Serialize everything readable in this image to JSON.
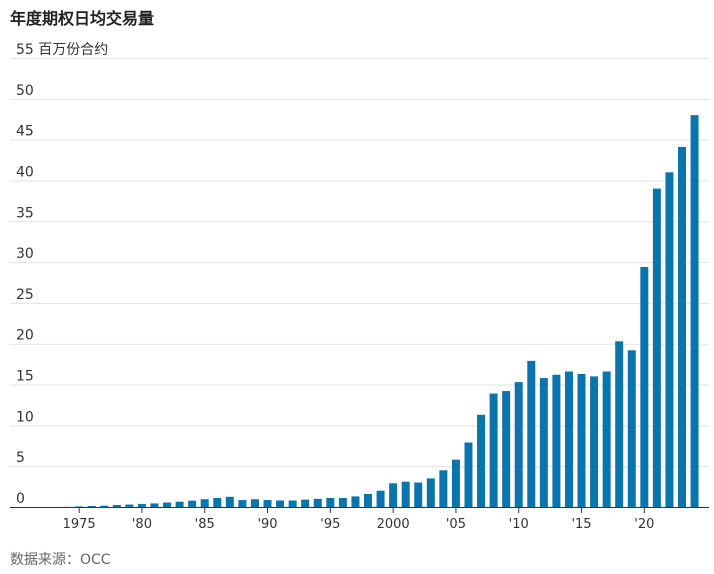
{
  "chart_data": {
    "type": "bar",
    "title": "年度期权日均交易量",
    "ylabel": "百万份合约",
    "source": "数据来源：OCC",
    "color": "#0a75ad",
    "ylim": [
      0,
      55
    ],
    "y_ticks": [
      0,
      5,
      10,
      15,
      20,
      25,
      30,
      35,
      40,
      45,
      50,
      55
    ],
    "x_ticks": [
      {
        "year": 1975,
        "label": "1975"
      },
      {
        "year": 1980,
        "label": "'80"
      },
      {
        "year": 1985,
        "label": "'85"
      },
      {
        "year": 1990,
        "label": "'90"
      },
      {
        "year": 1995,
        "label": "'95"
      },
      {
        "year": 2000,
        "label": "2000"
      },
      {
        "year": 2005,
        "label": "'05"
      },
      {
        "year": 2010,
        "label": "'10"
      },
      {
        "year": 2015,
        "label": "'15"
      },
      {
        "year": 2020,
        "label": "'20"
      }
    ],
    "x": [
      1973,
      1974,
      1975,
      1976,
      1977,
      1978,
      1979,
      1980,
      1981,
      1982,
      1983,
      1984,
      1985,
      1986,
      1987,
      1988,
      1989,
      1990,
      1991,
      1992,
      1993,
      1994,
      1995,
      1996,
      1997,
      1998,
      1999,
      2000,
      2001,
      2002,
      2003,
      2004,
      2005,
      2006,
      2007,
      2008,
      2009,
      2010,
      2011,
      2012,
      2013,
      2014,
      2015,
      2016,
      2017,
      2018,
      2019,
      2020,
      2021,
      2022,
      2023,
      2024
    ],
    "values": [
      0.0,
      0.02,
      0.07,
      0.13,
      0.16,
      0.25,
      0.3,
      0.38,
      0.44,
      0.55,
      0.65,
      0.78,
      0.95,
      1.1,
      1.25,
      0.85,
      0.95,
      0.85,
      0.8,
      0.8,
      0.9,
      1.0,
      1.1,
      1.1,
      1.3,
      1.6,
      2.0,
      2.9,
      3.1,
      3.0,
      3.5,
      4.5,
      5.8,
      7.9,
      11.3,
      13.9,
      14.2,
      15.3,
      17.9,
      15.8,
      16.2,
      16.6,
      16.3,
      16.0,
      16.6,
      20.3,
      19.2,
      29.4,
      39.0,
      41.0,
      44.1,
      48.0
    ]
  }
}
